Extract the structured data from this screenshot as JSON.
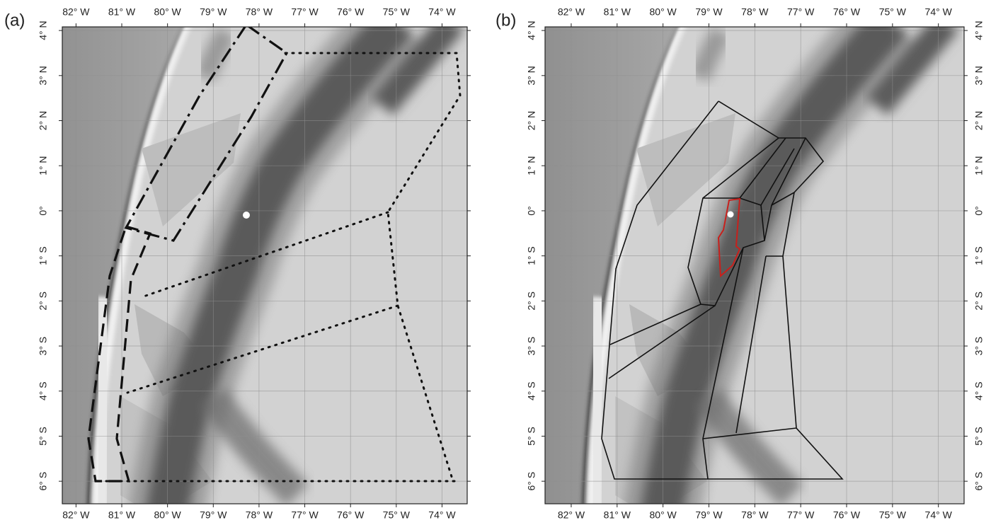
{
  "panels": [
    {
      "label": "(a)",
      "xlim": [
        -82.3,
        -73.45
      ],
      "ylim": [
        -6.5,
        4.08
      ],
      "xticks": [
        {
          "value": -82,
          "label": "82° W"
        },
        {
          "value": -81,
          "label": "81° W"
        },
        {
          "value": -80,
          "label": "80° W"
        },
        {
          "value": -79,
          "label": "79° W"
        },
        {
          "value": -78,
          "label": "78° W"
        },
        {
          "value": -77,
          "label": "77° W"
        },
        {
          "value": -76,
          "label": "76° W"
        },
        {
          "value": -75,
          "label": "75° W"
        },
        {
          "value": -74,
          "label": "74° W"
        }
      ],
      "yticks": [
        {
          "value": 4,
          "label": "4° N"
        },
        {
          "value": 3,
          "label": "3° N"
        },
        {
          "value": 2,
          "label": "2° N"
        },
        {
          "value": 1,
          "label": "1° N"
        },
        {
          "value": 0,
          "label": "0°"
        },
        {
          "value": -1,
          "label": "1° S"
        },
        {
          "value": -2,
          "label": "2° S"
        },
        {
          "value": -3,
          "label": "3° S"
        },
        {
          "value": -4,
          "label": "4° S"
        },
        {
          "value": -5,
          "label": "5° S"
        },
        {
          "value": -6,
          "label": "6° S"
        }
      ]
    },
    {
      "label": "(b)",
      "xlim": [
        -82.57,
        -73.44
      ],
      "ylim": [
        -6.5,
        4.08
      ],
      "xticks": [
        {
          "value": -82,
          "label": "82° W"
        },
        {
          "value": -81,
          "label": "81° W"
        },
        {
          "value": -80,
          "label": "80° W"
        },
        {
          "value": -79,
          "label": "79° W"
        },
        {
          "value": -78,
          "label": "78° W"
        },
        {
          "value": -77,
          "label": "77° W"
        },
        {
          "value": -76,
          "label": "76° W"
        },
        {
          "value": -75,
          "label": "75° W"
        },
        {
          "value": -74,
          "label": "74° W"
        }
      ],
      "yticks": [
        {
          "value": 4,
          "label": "4° N"
        },
        {
          "value": 3,
          "label": "3° N"
        },
        {
          "value": 2,
          "label": "2° N"
        },
        {
          "value": 1,
          "label": "1° N"
        },
        {
          "value": 0,
          "label": "0°"
        },
        {
          "value": -1,
          "label": "1° S"
        },
        {
          "value": -2,
          "label": "2° S"
        },
        {
          "value": -3,
          "label": "3° S"
        },
        {
          "value": -4,
          "label": "4° S"
        },
        {
          "value": -5,
          "label": "5° S"
        },
        {
          "value": -6,
          "label": "6° S"
        }
      ]
    }
  ]
}
